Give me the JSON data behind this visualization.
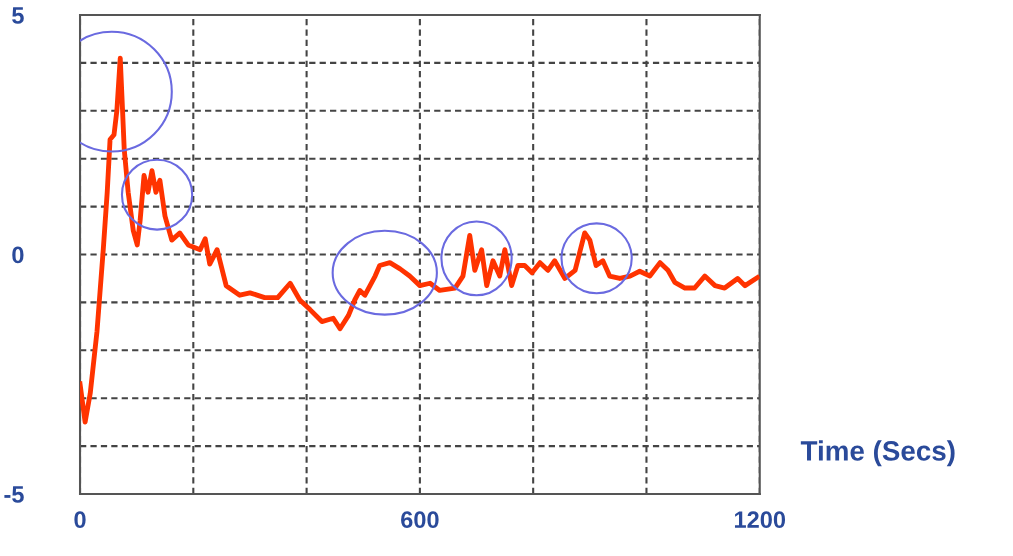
{
  "chart_data": {
    "type": "line",
    "xlabel": "Time (Secs)",
    "x": [
      0,
      9,
      18,
      30,
      41,
      48,
      53,
      60,
      65,
      71,
      74,
      78,
      85,
      94,
      101,
      106,
      113,
      120,
      127,
      134,
      141,
      150,
      162,
      176,
      191,
      212,
      221,
      229,
      242,
      258,
      282,
      300,
      326,
      349,
      371,
      388,
      406,
      427,
      447,
      459,
      474,
      485,
      494,
      503,
      521,
      529,
      547,
      565,
      582,
      600,
      618,
      635,
      662,
      676,
      688,
      697,
      709,
      718,
      729,
      741,
      750,
      762,
      773,
      785,
      798,
      812,
      826,
      838,
      856,
      874,
      891,
      900,
      911,
      923,
      935,
      953,
      971,
      988,
      1006,
      1024,
      1038,
      1050,
      1068,
      1085,
      1103,
      1121,
      1138,
      1161,
      1174,
      1196
    ],
    "series": [
      {
        "color": "#ff3300",
        "values": [
          -2.7,
          -3.5,
          -2.9,
          -1.6,
          0.1,
          1.3,
          2.4,
          2.5,
          3.0,
          4.1,
          3.3,
          2.2,
          1.3,
          0.5,
          0.2,
          0.7,
          1.65,
          1.3,
          1.75,
          1.3,
          1.55,
          0.8,
          0.3,
          0.45,
          0.2,
          0.1,
          0.33,
          -0.2,
          0.1,
          -0.65,
          -0.85,
          -0.8,
          -0.9,
          -0.9,
          -0.6,
          -0.95,
          -1.15,
          -1.4,
          -1.33,
          -1.55,
          -1.27,
          -0.95,
          -0.75,
          -0.85,
          -0.45,
          -0.23,
          -0.17,
          -0.3,
          -0.45,
          -0.65,
          -0.6,
          -0.75,
          -0.7,
          -0.45,
          0.4,
          -0.33,
          0.1,
          -0.65,
          -0.13,
          -0.45,
          0.1,
          -0.65,
          -0.23,
          -0.23,
          -0.38,
          -0.17,
          -0.33,
          -0.13,
          -0.5,
          -0.33,
          0.45,
          0.3,
          -0.23,
          -0.13,
          -0.45,
          -0.5,
          -0.45,
          -0.35,
          -0.45,
          -0.17,
          -0.33,
          -0.58,
          -0.7,
          -0.7,
          -0.45,
          -0.65,
          -0.7,
          -0.5,
          -0.65,
          -0.48
        ]
      }
    ],
    "xlim": [
      0,
      1200
    ],
    "ylim": [
      -5,
      5
    ],
    "xticks": [
      0,
      {
        "value": 200,
        "label": null
      },
      {
        "value": 400,
        "label": null
      },
      600,
      {
        "value": 800,
        "label": null
      },
      {
        "value": 1000,
        "label": null
      },
      1200
    ],
    "yticks": [
      -5,
      {
        "value": -4,
        "label": null
      },
      {
        "value": -3,
        "label": null
      },
      {
        "value": -2,
        "label": null
      },
      {
        "value": -1,
        "label": null
      },
      0,
      {
        "value": 1,
        "label": null
      },
      {
        "value": 2,
        "label": null
      },
      {
        "value": 3,
        "label": null
      },
      {
        "value": 4,
        "label": null
      },
      5
    ],
    "grid": true,
    "marker": "none",
    "line_style": "solid"
  }
}
